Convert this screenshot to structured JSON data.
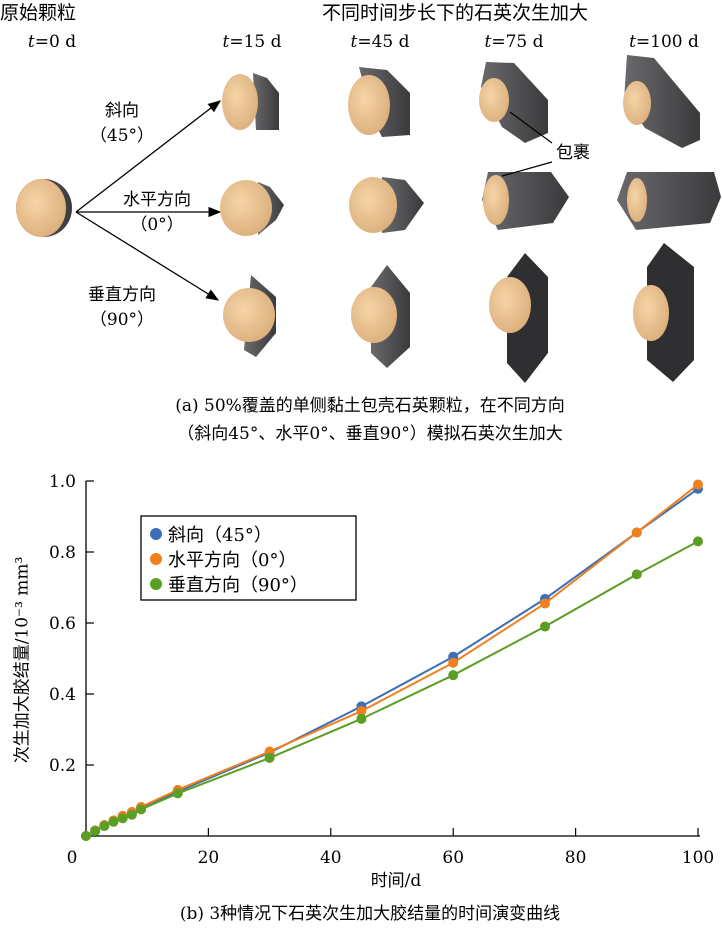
{
  "panel_a": {
    "header_original": "原始颗粒",
    "header_growth": "不同时间步长下的石英次生加大",
    "time_labels": [
      {
        "var": "t",
        "value": "=0 d"
      },
      {
        "var": "t",
        "value": "=15 d"
      },
      {
        "var": "t",
        "value": "=45 d"
      },
      {
        "var": "t",
        "value": "=75 d"
      },
      {
        "var": "t",
        "value": "=100 d"
      }
    ],
    "directions": [
      {
        "name": "斜向",
        "angle": "（45°）"
      },
      {
        "name": "水平方向",
        "angle": "（0°）"
      },
      {
        "name": "垂直方向",
        "angle": "（90°）"
      }
    ],
    "annotation": "包裹",
    "caption_line1": "(a) 50%覆盖的单侧黏土包壳石英颗粒，在不同方向",
    "caption_line2": "（斜向45°、水平0°、垂直90°）模拟石英次生加大",
    "colors": {
      "grain": "#f2c99a",
      "overgrowth": "#555558"
    }
  },
  "chart_data": {
    "type": "line",
    "title": "",
    "xlabel": "时间/d",
    "ylabel": "次生加大胶结量/10⁻³ mm³",
    "xlim": [
      0,
      100
    ],
    "ylim": [
      0,
      1.0
    ],
    "xticks": [
      "0",
      "20",
      "40",
      "60",
      "80",
      "100"
    ],
    "yticks": [
      "0.2",
      "0.4",
      "0.6",
      "0.8",
      "1.0"
    ],
    "grid": false,
    "legend_position": "top-left",
    "x": [
      0,
      1.5,
      3,
      4.5,
      6,
      7.5,
      9,
      15,
      30,
      45,
      60,
      75,
      90,
      100
    ],
    "series": [
      {
        "name": "斜向（45°）",
        "color": "#3b6fb6",
        "values": [
          0,
          0.015,
          0.03,
          0.042,
          0.055,
          0.065,
          0.08,
          0.125,
          0.235,
          0.365,
          0.505,
          0.668,
          0.855,
          0.978
        ]
      },
      {
        "name": "水平方向（0°）",
        "color": "#f0801e",
        "values": [
          0,
          0.016,
          0.031,
          0.044,
          0.057,
          0.068,
          0.082,
          0.13,
          0.238,
          0.352,
          0.488,
          0.655,
          0.855,
          0.99
        ]
      },
      {
        "name": "垂直方向（90°）",
        "color": "#5a9e23",
        "values": [
          0,
          0.014,
          0.028,
          0.04,
          0.05,
          0.06,
          0.075,
          0.12,
          0.22,
          0.33,
          0.453,
          0.59,
          0.737,
          0.83
        ]
      }
    ],
    "caption": "(b) 3种情况下石英次生加大胶结量的时间演变曲线"
  }
}
